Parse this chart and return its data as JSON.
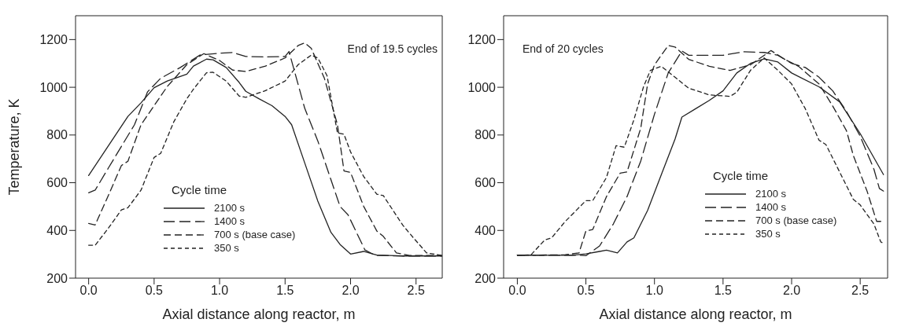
{
  "chart_data": [
    {
      "type": "line",
      "xlabel": "Axial distance along reactor, m",
      "ylabel": "Temperature, K",
      "legend_title": "Cycle time",
      "annotations": [
        "End of 19.5 cycles"
      ],
      "legend": "bottom left",
      "grid": false,
      "marker": "none",
      "xlim": [
        -0.1,
        2.7
      ],
      "xticks": [
        {
          "value": 0,
          "label": "0.0"
        },
        0.5,
        {
          "value": 1,
          "label": "1.0"
        },
        1.5,
        {
          "value": 2,
          "label": "2.0"
        },
        2.5
      ],
      "ylim": [
        200,
        1300
      ],
      "yticks": [
        200,
        400,
        600,
        800,
        1000,
        1200
      ],
      "series": [
        {
          "name": "2100 s",
          "color": "#222222",
          "line_style": "solid",
          "x": [
            0,
            0.3,
            0.4,
            0.5,
            0.6,
            0.75,
            0.8,
            0.9,
            0.95,
            1.05,
            1.15,
            1.2,
            1.3,
            1.4,
            1.5,
            1.55,
            1.65,
            1.75,
            1.85,
            1.92,
            2.0,
            2.1,
            2.2,
            2.4,
            2.7
          ],
          "values": [
            630,
            878,
            935,
            998,
            1026,
            1055,
            1089,
            1118,
            1115,
            1083,
            1020,
            983,
            952,
            923,
            878,
            843,
            683,
            523,
            392,
            341,
            301,
            312,
            297,
            293,
            293
          ]
        },
        {
          "name": "1400 s",
          "color": "#222222",
          "line_style": "dashed",
          "x": [
            0,
            0.05,
            0.15,
            0.25,
            0.35,
            0.45,
            0.55,
            0.7,
            0.85,
            1.0,
            1.1,
            1.2,
            1.35,
            1.5,
            1.53,
            1.65,
            1.75,
            1.92,
            1.98,
            2.11,
            2.19,
            2.4,
            2.7
          ],
          "values": [
            558,
            569,
            661,
            752,
            843,
            981,
            1038,
            1083,
            1135,
            1143,
            1146,
            1129,
            1127,
            1129,
            1150,
            912,
            775,
            500,
            466,
            318,
            295,
            293,
            293
          ]
        },
        {
          "name": "700 s (base case)",
          "color": "#222222",
          "line_style": "dashed",
          "x": [
            0,
            0.05,
            0.15,
            0.25,
            0.3,
            0.4,
            0.5,
            0.6,
            0.75,
            0.88,
            1.0,
            1.1,
            1.2,
            1.35,
            1.5,
            1.6,
            1.65,
            1.7,
            1.8,
            1.9,
            1.95,
            2.0,
            2.1,
            2.2,
            2.25,
            2.35,
            2.45,
            2.7
          ],
          "values": [
            429,
            423,
            546,
            672,
            690,
            843,
            923,
            1003,
            1095,
            1141,
            1112,
            1072,
            1066,
            1089,
            1123,
            1175,
            1186,
            1163,
            1038,
            843,
            649,
            643,
            501,
            398,
            375,
            306,
            295,
            295
          ]
        },
        {
          "name": "350 s",
          "color": "#222222",
          "line_style": "dashed",
          "x": [
            0,
            0.05,
            0.15,
            0.25,
            0.3,
            0.4,
            0.5,
            0.55,
            0.65,
            0.75,
            0.8,
            0.9,
            0.95,
            1.05,
            1.15,
            1.2,
            1.35,
            1.5,
            1.6,
            1.7,
            1.75,
            1.82,
            1.9,
            1.95,
            2.0,
            2.1,
            2.2,
            2.25,
            2.4,
            2.48,
            2.58,
            2.7
          ],
          "values": [
            338,
            338,
            409,
            486,
            495,
            569,
            706,
            723,
            855,
            952,
            992,
            1061,
            1063,
            1026,
            963,
            958,
            986,
            1026,
            1095,
            1135,
            1123,
            1049,
            809,
            803,
            729,
            626,
            552,
            546,
            421,
            369,
            306,
            295
          ]
        }
      ]
    },
    {
      "type": "line",
      "xlabel": "Axial distance along reactor, m",
      "legend_title": "Cycle time",
      "annotations": [
        "End of 20 cycles"
      ],
      "legend": "bottom right",
      "grid": false,
      "marker": "none",
      "xlim": [
        -0.1,
        2.7
      ],
      "xticks": [
        {
          "value": 0,
          "label": "0.0"
        },
        0.5,
        {
          "value": 1,
          "label": "1.0"
        },
        1.5,
        {
          "value": 2,
          "label": "2.0"
        },
        2.5
      ],
      "ylim": [
        200,
        1300
      ],
      "yticks": [
        200,
        400,
        600,
        800,
        1000,
        1200
      ],
      "series": [
        {
          "name": "2100 s",
          "color": "#222222",
          "line_style": "solid",
          "x": [
            0,
            0.4,
            0.5,
            0.6,
            0.65,
            0.73,
            0.8,
            0.85,
            0.95,
            1.05,
            1.15,
            1.2,
            1.3,
            1.4,
            1.5,
            1.6,
            1.7,
            1.8,
            1.9,
            2.0,
            2.2,
            2.35,
            2.5,
            2.67
          ],
          "values": [
            296,
            296,
            302,
            312,
            317,
            306,
            352,
            369,
            484,
            634,
            783,
            875,
            910,
            945,
            985,
            1060,
            1100,
            1119,
            1106,
            1060,
            1002,
            939,
            806,
            634
          ]
        },
        {
          "name": "1400 s",
          "color": "#222222",
          "line_style": "dashed",
          "x": [
            0,
            0.45,
            0.5,
            0.6,
            0.7,
            0.8,
            0.9,
            1.0,
            1.1,
            1.2,
            1.25,
            1.4,
            1.5,
            1.65,
            1.8,
            1.9,
            2.0,
            2.1,
            2.2,
            2.3,
            2.4,
            2.5,
            2.6,
            2.64,
            2.67
          ],
          "values": [
            296,
            296,
            294,
            335,
            427,
            542,
            691,
            887,
            1060,
            1152,
            1134,
            1134,
            1134,
            1149,
            1146,
            1134,
            1100,
            1083,
            1042,
            985,
            899,
            795,
            657,
            576,
            565
          ]
        },
        {
          "name": "700 s (base case)",
          "color": "#222222",
          "line_style": "dashed",
          "x": [
            0,
            0.35,
            0.45,
            0.5,
            0.55,
            0.65,
            0.75,
            0.8,
            0.9,
            0.95,
            1.0,
            1.1,
            1.15,
            1.25,
            1.4,
            1.55,
            1.7,
            1.85,
            1.95,
            2.05,
            2.2,
            2.3,
            2.4,
            2.45,
            2.55,
            2.62,
            2.67
          ],
          "values": [
            296,
            298,
            306,
            398,
            404,
            542,
            640,
            645,
            829,
            1014,
            1094,
            1175,
            1169,
            1117,
            1088,
            1071,
            1094,
            1154,
            1117,
            1088,
            1014,
            921,
            818,
            714,
            565,
            438,
            438
          ]
        },
        {
          "name": "350 s",
          "color": "#222222",
          "line_style": "dashed",
          "x": [
            0,
            0.1,
            0.2,
            0.25,
            0.35,
            0.5,
            0.55,
            0.65,
            0.72,
            0.78,
            0.85,
            0.92,
            0.97,
            1.05,
            1.15,
            1.25,
            1.4,
            1.55,
            1.6,
            1.7,
            1.8,
            1.9,
            2.0,
            2.1,
            2.2,
            2.25,
            2.35,
            2.45,
            2.5,
            2.6,
            2.65,
            2.67
          ],
          "values": [
            296,
            298,
            360,
            369,
            438,
            525,
            525,
            622,
            755,
            749,
            864,
            1002,
            1071,
            1088,
            1042,
            996,
            968,
            962,
            979,
            1071,
            1123,
            1071,
            1014,
            910,
            778,
            760,
            645,
            530,
            507,
            427,
            352,
            346
          ]
        }
      ]
    }
  ]
}
